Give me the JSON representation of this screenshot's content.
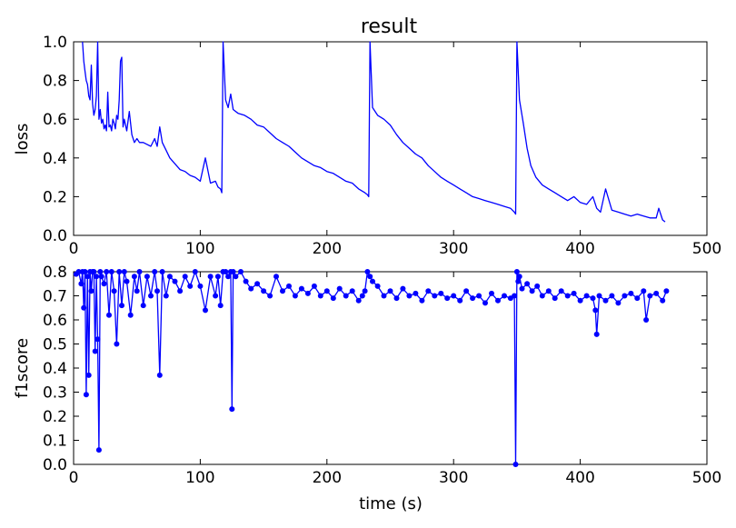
{
  "figure": {
    "title": "result"
  },
  "chart_data": [
    {
      "type": "line",
      "ylabel": "loss",
      "xlabel": "",
      "xlim": [
        0,
        500
      ],
      "ylim": [
        0.0,
        1.0
      ],
      "xticks": [
        0,
        100,
        200,
        300,
        400,
        500
      ],
      "yticks": [
        0.0,
        0.2,
        0.4,
        0.6,
        0.8,
        1.0
      ],
      "xtick_labels": [
        "0",
        "100",
        "200",
        "300",
        "400",
        "500"
      ],
      "ytick_labels": [
        "0.0",
        "0.2",
        "0.4",
        "0.6",
        "0.8",
        "1.0"
      ],
      "grid": false,
      "series": [
        {
          "color": "#0000ff",
          "x": [
            7,
            8,
            9,
            10,
            11,
            12,
            13,
            14,
            15,
            16,
            17,
            18,
            19,
            20,
            21,
            22,
            23,
            24,
            25,
            26,
            27,
            28,
            29,
            30,
            31,
            32,
            33,
            34,
            35,
            36,
            37,
            38,
            39,
            40,
            42,
            44,
            46,
            48,
            50,
            52,
            55,
            58,
            61,
            64,
            66,
            68,
            70,
            73,
            76,
            80,
            84,
            88,
            92,
            96,
            100,
            104,
            108,
            112,
            114,
            116,
            117,
            118,
            120,
            122,
            124,
            126,
            130,
            135,
            140,
            145,
            150,
            155,
            160,
            165,
            170,
            175,
            180,
            185,
            190,
            195,
            200,
            205,
            210,
            215,
            220,
            225,
            230,
            232,
            233,
            234,
            236,
            240,
            245,
            250,
            255,
            260,
            265,
            270,
            275,
            280,
            285,
            290,
            295,
            300,
            305,
            310,
            315,
            320,
            325,
            330,
            335,
            340,
            345,
            348,
            349,
            350,
            352,
            355,
            358,
            361,
            365,
            370,
            375,
            380,
            385,
            390,
            395,
            400,
            405,
            410,
            413,
            416,
            420,
            425,
            430,
            435,
            440,
            445,
            450,
            455,
            460,
            462,
            465,
            467
          ],
          "y": [
            1.0,
            0.9,
            0.85,
            0.8,
            0.78,
            0.72,
            0.7,
            0.88,
            0.68,
            0.62,
            0.65,
            0.72,
            1.0,
            0.6,
            0.65,
            0.58,
            0.6,
            0.55,
            0.57,
            0.54,
            0.74,
            0.56,
            0.57,
            0.54,
            0.6,
            0.58,
            0.55,
            0.62,
            0.6,
            0.7,
            0.9,
            0.92,
            0.56,
            0.6,
            0.54,
            0.64,
            0.52,
            0.48,
            0.5,
            0.48,
            0.48,
            0.47,
            0.46,
            0.5,
            0.46,
            0.56,
            0.48,
            0.44,
            0.4,
            0.37,
            0.34,
            0.33,
            0.31,
            0.3,
            0.28,
            0.4,
            0.27,
            0.28,
            0.25,
            0.24,
            0.22,
            1.0,
            0.7,
            0.66,
            0.73,
            0.65,
            0.63,
            0.62,
            0.6,
            0.57,
            0.56,
            0.53,
            0.5,
            0.48,
            0.46,
            0.43,
            0.4,
            0.38,
            0.36,
            0.35,
            0.33,
            0.32,
            0.3,
            0.28,
            0.27,
            0.24,
            0.22,
            0.21,
            0.2,
            1.0,
            0.66,
            0.62,
            0.6,
            0.57,
            0.52,
            0.48,
            0.45,
            0.42,
            0.4,
            0.36,
            0.33,
            0.3,
            0.28,
            0.26,
            0.24,
            0.22,
            0.2,
            0.19,
            0.18,
            0.17,
            0.16,
            0.15,
            0.14,
            0.12,
            0.11,
            1.0,
            0.7,
            0.58,
            0.45,
            0.36,
            0.3,
            0.26,
            0.24,
            0.22,
            0.2,
            0.18,
            0.2,
            0.17,
            0.16,
            0.2,
            0.14,
            0.12,
            0.24,
            0.13,
            0.12,
            0.11,
            0.1,
            0.11,
            0.1,
            0.09,
            0.09,
            0.14,
            0.08,
            0.07
          ]
        }
      ]
    },
    {
      "type": "line",
      "ylabel": "f1score",
      "xlabel": "time (s)",
      "xlim": [
        0,
        500
      ],
      "ylim": [
        0.0,
        0.8
      ],
      "xticks": [
        0,
        100,
        200,
        300,
        400,
        500
      ],
      "yticks": [
        0.0,
        0.1,
        0.2,
        0.3,
        0.4,
        0.5,
        0.6,
        0.7,
        0.8
      ],
      "xtick_labels": [
        "0",
        "100",
        "200",
        "300",
        "400",
        "500"
      ],
      "ytick_labels": [
        "0.0",
        "0.1",
        "0.2",
        "0.3",
        "0.4",
        "0.5",
        "0.6",
        "0.7",
        "0.8"
      ],
      "grid": false,
      "markers": true,
      "series": [
        {
          "color": "#0000ff",
          "x": [
            2,
            4,
            6,
            7,
            8,
            9,
            10,
            11,
            12,
            13,
            14,
            15,
            16,
            17,
            18,
            19,
            20,
            21,
            22,
            24,
            26,
            28,
            30,
            32,
            34,
            36,
            38,
            40,
            42,
            45,
            48,
            50,
            52,
            55,
            58,
            61,
            64,
            66,
            68,
            70,
            73,
            76,
            80,
            84,
            88,
            92,
            96,
            100,
            104,
            108,
            112,
            114,
            116,
            118,
            120,
            122,
            124,
            125,
            126,
            128,
            132,
            136,
            140,
            145,
            150,
            155,
            160,
            165,
            170,
            175,
            180,
            185,
            190,
            195,
            200,
            205,
            210,
            215,
            220,
            225,
            228,
            230,
            232,
            234,
            236,
            240,
            245,
            250,
            255,
            260,
            265,
            270,
            275,
            280,
            285,
            290,
            295,
            300,
            305,
            310,
            315,
            320,
            325,
            330,
            335,
            340,
            345,
            348,
            349,
            350,
            351,
            352,
            354,
            358,
            362,
            366,
            370,
            375,
            380,
            385,
            390,
            395,
            400,
            405,
            410,
            412,
            413,
            415,
            420,
            425,
            430,
            435,
            440,
            445,
            450,
            452,
            455,
            460,
            465,
            468
          ],
          "y": [
            0.79,
            0.8,
            0.75,
            0.8,
            0.65,
            0.8,
            0.29,
            0.78,
            0.37,
            0.8,
            0.72,
            0.8,
            0.8,
            0.47,
            0.78,
            0.52,
            0.06,
            0.8,
            0.78,
            0.75,
            0.8,
            0.62,
            0.8,
            0.72,
            0.5,
            0.8,
            0.66,
            0.8,
            0.76,
            0.62,
            0.78,
            0.72,
            0.8,
            0.66,
            0.78,
            0.7,
            0.8,
            0.72,
            0.37,
            0.8,
            0.7,
            0.78,
            0.76,
            0.72,
            0.78,
            0.74,
            0.8,
            0.74,
            0.64,
            0.78,
            0.7,
            0.78,
            0.66,
            0.8,
            0.8,
            0.78,
            0.8,
            0.23,
            0.8,
            0.78,
            0.8,
            0.76,
            0.73,
            0.75,
            0.72,
            0.7,
            0.78,
            0.72,
            0.74,
            0.7,
            0.73,
            0.71,
            0.74,
            0.7,
            0.72,
            0.69,
            0.73,
            0.7,
            0.72,
            0.68,
            0.7,
            0.72,
            0.8,
            0.78,
            0.76,
            0.74,
            0.7,
            0.72,
            0.69,
            0.73,
            0.7,
            0.71,
            0.68,
            0.72,
            0.7,
            0.71,
            0.69,
            0.7,
            0.68,
            0.72,
            0.69,
            0.7,
            0.67,
            0.71,
            0.68,
            0.7,
            0.69,
            0.7,
            0.0,
            0.8,
            0.76,
            0.78,
            0.73,
            0.75,
            0.72,
            0.74,
            0.7,
            0.72,
            0.69,
            0.72,
            0.7,
            0.71,
            0.68,
            0.7,
            0.69,
            0.64,
            0.54,
            0.7,
            0.68,
            0.7,
            0.67,
            0.7,
            0.71,
            0.69,
            0.72,
            0.6,
            0.7,
            0.71,
            0.68,
            0.72
          ]
        }
      ]
    }
  ]
}
